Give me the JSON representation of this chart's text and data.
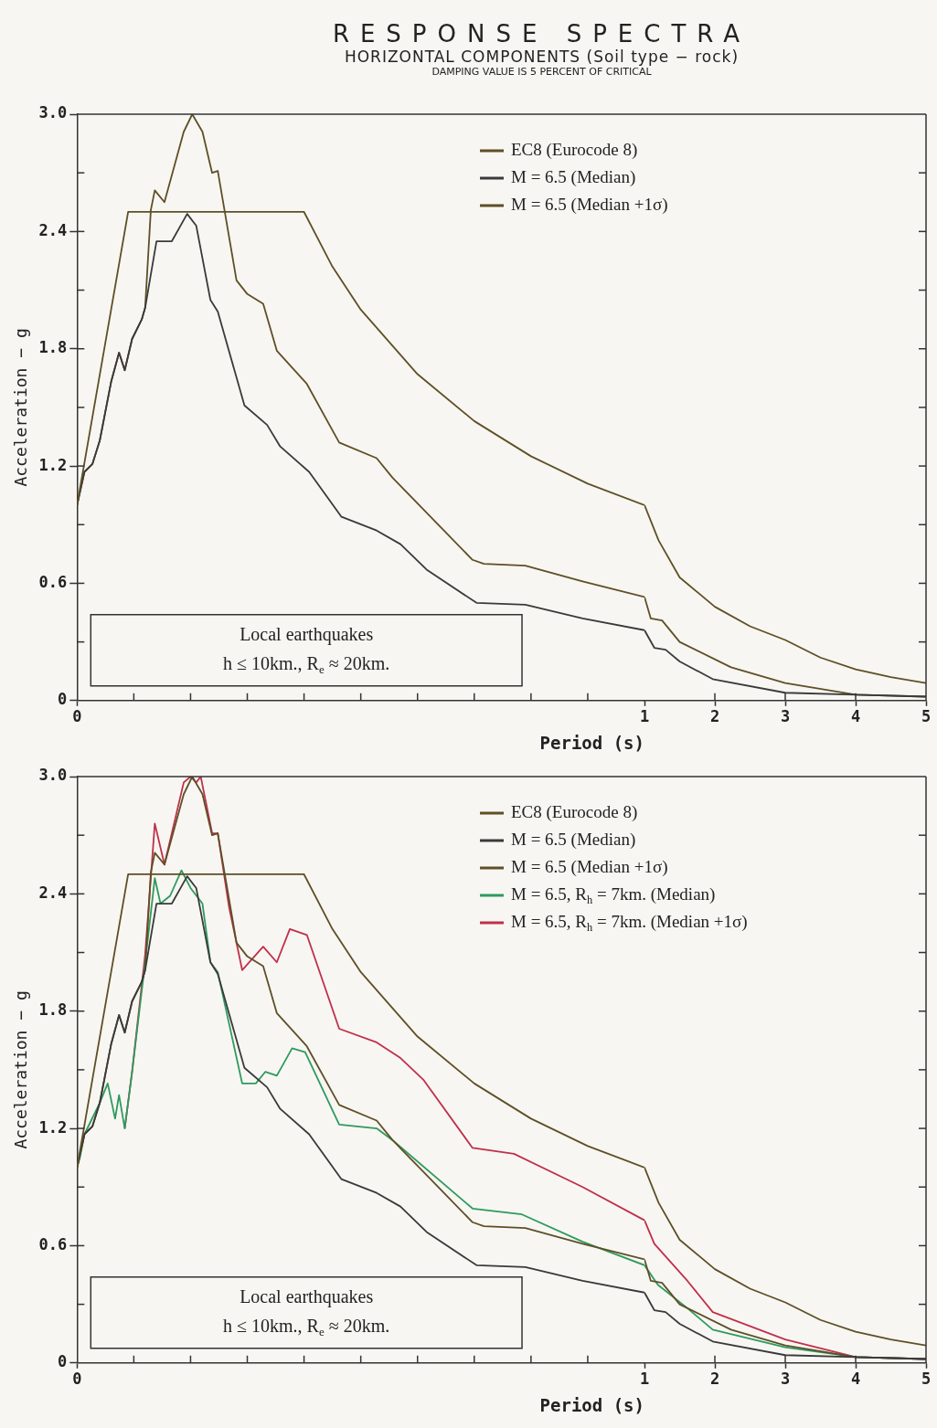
{
  "chart_data": [
    {
      "type": "line",
      "title": "RESPONSE SPECTRA",
      "subtitle": "HORIZONTAL COMPONENTS  (Soil type − rock)\nDAMPING VALUE IS 5 PERCENT OF CRITICAL",
      "xlabel": "Period (s)",
      "ylabel": "Acceleration − g",
      "xlim": [
        0,
        1
      ],
      "ylim": [
        0,
        3
      ],
      "xticks": [
        {
          "value": 0,
          "label": "0"
        },
        {
          "value": 0.1,
          "label": null
        },
        {
          "value": 0.2,
          "label": null
        },
        {
          "value": 0.3,
          "label": null
        },
        {
          "value": 0.4,
          "label": null
        },
        {
          "value": 0.5,
          "label": null
        },
        {
          "value": 0.6,
          "label": null
        },
        {
          "value": 0.7,
          "label": null
        },
        {
          "value": 0.8,
          "label": null
        },
        {
          "value": 0.9,
          "label": null
        },
        {
          "value": 1,
          "label": "1"
        }
      ],
      "yticks": [
        {
          "value": 0,
          "label": "0"
        },
        {
          "value": 0.3,
          "label": null
        },
        {
          "value": 0.6,
          "label": "0.6"
        },
        {
          "value": 0.9,
          "label": null
        },
        {
          "value": 1.2,
          "label": "1.2"
        },
        {
          "value": 1.5,
          "label": null
        },
        {
          "value": 1.8,
          "label": "1.8"
        },
        {
          "value": 2.1,
          "label": null
        },
        {
          "value": 2.4,
          "label": "2.4"
        },
        {
          "value": 2.7,
          "label": null
        },
        {
          "value": 3,
          "label": "3.0"
        }
      ],
      "grid": false,
      "legend": "top right",
      "annotations": [
        "Local earthquakes",
        "h ≤ 10km., R$_{e}$ ≈ 20km."
      ],
      "series": [
        {
          "name": "EC8 (Eurocode 8)",
          "color": "#5e4f26",
          "x": [
            0,
            0.09,
            0.4,
            0.45,
            0.5,
            0.6,
            0.7,
            0.8,
            0.9,
            1
          ],
          "values": [
            1.0,
            2.5,
            2.5,
            2.22,
            2.0,
            1.67,
            1.43,
            1.25,
            1.11,
            1.0
          ]
        },
        {
          "name": "M = 6.5 (Median)",
          "color": "#3a3a3a",
          "x": [
            0,
            0.013,
            0.027,
            0.04,
            0.06,
            0.074,
            0.084,
            0.097,
            0.114,
            0.12,
            0.14,
            0.167,
            0.194,
            0.21,
            0.235,
            0.248,
            0.295,
            0.335,
            0.358,
            0.409,
            0.466,
            0.528,
            0.57,
            0.616,
            0.704,
            0.79,
            0.891,
            1
          ],
          "values": [
            1.0,
            1.17,
            1.21,
            1.33,
            1.63,
            1.78,
            1.69,
            1.85,
            1.95,
            2.01,
            2.35,
            2.35,
            2.49,
            2.43,
            2.05,
            1.99,
            1.51,
            1.41,
            1.3,
            1.17,
            0.94,
            0.87,
            0.8,
            0.67,
            0.5,
            0.49,
            0.42,
            0.36
          ]
        },
        {
          "name": "M = 6.5 (Median +1σ)",
          "color": "#5e4f26",
          "x": [
            0,
            0.013,
            0.027,
            0.04,
            0.06,
            0.074,
            0.084,
            0.097,
            0.114,
            0.12,
            0.13,
            0.137,
            0.154,
            0.188,
            0.203,
            0.221,
            0.238,
            0.248,
            0.281,
            0.3,
            0.328,
            0.352,
            0.405,
            0.462,
            0.528,
            0.556,
            0.623,
            0.697,
            0.717,
            0.79,
            0.891,
            1
          ],
          "values": [
            1.0,
            1.17,
            1.21,
            1.33,
            1.63,
            1.78,
            1.69,
            1.85,
            1.95,
            2.01,
            2.51,
            2.61,
            2.55,
            2.91,
            3.0,
            2.91,
            2.7,
            2.71,
            2.15,
            2.08,
            2.03,
            1.79,
            1.62,
            1.32,
            1.24,
            1.14,
            0.94,
            0.72,
            0.7,
            0.69,
            0.61,
            0.53
          ]
        }
      ]
    },
    {
      "type": "line",
      "xlim": [
        1,
        5
      ],
      "ylim": [
        0,
        3
      ],
      "tick_labels": "x",
      "xticks": [
        {
          "value": 2,
          "label": "2"
        },
        {
          "value": 3,
          "label": "3"
        },
        {
          "value": 4,
          "label": "4"
        },
        {
          "value": 5,
          "label": "5"
        }
      ],
      "yticks": [
        {
          "value": 0,
          "label": null
        },
        {
          "value": 0.3,
          "label": null
        },
        {
          "value": 0.6,
          "label": null
        },
        {
          "value": 0.9,
          "label": null
        },
        {
          "value": 1.2,
          "label": null
        },
        {
          "value": 1.5,
          "label": null
        },
        {
          "value": 1.8,
          "label": null
        },
        {
          "value": 2.1,
          "label": null
        },
        {
          "value": 2.4,
          "label": null
        },
        {
          "value": 2.7,
          "label": null
        },
        {
          "value": 3,
          "label": null
        }
      ],
      "grid": false,
      "series": [
        {
          "color": "#5e4f26",
          "x": [
            1,
            1.2,
            1.5,
            2,
            2.5,
            3,
            3.5,
            4,
            4.5,
            5
          ],
          "values": [
            1.0,
            0.82,
            0.63,
            0.48,
            0.38,
            0.31,
            0.22,
            0.16,
            0.12,
            0.09
          ]
        },
        {
          "color": "#3a3a3a",
          "x": [
            1,
            1.14,
            1.3,
            1.5,
            1.97,
            3,
            4,
            5
          ],
          "values": [
            0.36,
            0.27,
            0.26,
            0.2,
            0.11,
            0.04,
            0.03,
            0.02
          ]
        },
        {
          "color": "#5e4f26",
          "x": [
            1,
            1.09,
            1.25,
            1.5,
            2.23,
            3,
            4,
            5
          ],
          "values": [
            0.53,
            0.42,
            0.41,
            0.3,
            0.17,
            0.09,
            0.03,
            0.02
          ]
        }
      ]
    },
    {
      "type": "line",
      "xlabel": "Period (s)",
      "ylabel": "Acceleration − g",
      "xlim": [
        0,
        1
      ],
      "ylim": [
        0,
        3
      ],
      "xticks": [
        {
          "value": 0,
          "label": "0"
        },
        {
          "value": 0.1,
          "label": null
        },
        {
          "value": 0.2,
          "label": null
        },
        {
          "value": 0.3,
          "label": null
        },
        {
          "value": 0.4,
          "label": null
        },
        {
          "value": 0.5,
          "label": null
        },
        {
          "value": 0.6,
          "label": null
        },
        {
          "value": 0.7,
          "label": null
        },
        {
          "value": 0.8,
          "label": null
        },
        {
          "value": 0.9,
          "label": null
        },
        {
          "value": 1,
          "label": "1"
        }
      ],
      "yticks": [
        {
          "value": 0,
          "label": "0"
        },
        {
          "value": 0.3,
          "label": null
        },
        {
          "value": 0.6,
          "label": "0.6"
        },
        {
          "value": 0.9,
          "label": null
        },
        {
          "value": 1.2,
          "label": "1.2"
        },
        {
          "value": 1.5,
          "label": null
        },
        {
          "value": 1.8,
          "label": "1.8"
        },
        {
          "value": 2.1,
          "label": null
        },
        {
          "value": 2.4,
          "label": "2.4"
        },
        {
          "value": 2.7,
          "label": null
        },
        {
          "value": 3,
          "label": "3.0"
        }
      ],
      "grid": false,
      "legend": "top right",
      "annotations": [
        "Local earthquakes",
        "h ≤ 10km., R$_{e}$ ≈ 20km."
      ],
      "series": [
        {
          "name": "EC8 (Eurocode 8)",
          "color": "#5e4f26",
          "x": [
            0,
            0.09,
            0.4,
            0.45,
            0.5,
            0.6,
            0.7,
            0.8,
            0.9,
            1
          ],
          "values": [
            1.0,
            2.5,
            2.5,
            2.22,
            2.0,
            1.67,
            1.43,
            1.25,
            1.11,
            1.0
          ]
        },
        {
          "name": "M = 6.5 (Median)",
          "color": "#3a3a3a",
          "x": [
            0,
            0.013,
            0.027,
            0.04,
            0.06,
            0.074,
            0.084,
            0.097,
            0.114,
            0.12,
            0.14,
            0.167,
            0.194,
            0.21,
            0.235,
            0.248,
            0.295,
            0.335,
            0.358,
            0.409,
            0.466,
            0.528,
            0.57,
            0.616,
            0.704,
            0.79,
            0.891,
            1
          ],
          "values": [
            1.0,
            1.17,
            1.21,
            1.33,
            1.63,
            1.78,
            1.69,
            1.85,
            1.95,
            2.01,
            2.35,
            2.35,
            2.49,
            2.43,
            2.05,
            1.99,
            1.51,
            1.41,
            1.3,
            1.17,
            0.94,
            0.87,
            0.8,
            0.67,
            0.5,
            0.49,
            0.42,
            0.36
          ]
        },
        {
          "name": "M = 6.5 (Median +1σ)",
          "color": "#5e4f26",
          "x": [
            0,
            0.013,
            0.027,
            0.04,
            0.06,
            0.074,
            0.084,
            0.097,
            0.114,
            0.12,
            0.13,
            0.137,
            0.154,
            0.188,
            0.203,
            0.221,
            0.238,
            0.248,
            0.281,
            0.3,
            0.328,
            0.352,
            0.405,
            0.462,
            0.528,
            0.556,
            0.623,
            0.697,
            0.717,
            0.79,
            0.891,
            1
          ],
          "values": [
            1.0,
            1.17,
            1.21,
            1.33,
            1.63,
            1.78,
            1.69,
            1.85,
            1.95,
            2.01,
            2.51,
            2.61,
            2.55,
            2.91,
            3.0,
            2.91,
            2.7,
            2.71,
            2.15,
            2.08,
            2.03,
            1.79,
            1.62,
            1.32,
            1.24,
            1.14,
            0.94,
            0.72,
            0.7,
            0.69,
            0.61,
            0.53
          ]
        },
        {
          "name": "M = 6.5, R$_{h}$ = 7km. (Median)",
          "color": "#2e9a5e",
          "x": [
            0,
            0.005,
            0.013,
            0.04,
            0.054,
            0.067,
            0.074,
            0.084,
            0.097,
            0.12,
            0.137,
            0.147,
            0.164,
            0.184,
            0.2,
            0.221,
            0.235,
            0.248,
            0.291,
            0.315,
            0.332,
            0.352,
            0.379,
            0.402,
            0.462,
            0.528,
            0.556,
            0.697,
            0.784,
            0.891,
            1
          ],
          "values": [
            1.0,
            1.05,
            1.17,
            1.33,
            1.43,
            1.25,
            1.37,
            1.2,
            1.49,
            2.05,
            2.48,
            2.35,
            2.39,
            2.52,
            2.43,
            2.35,
            2.05,
            2.0,
            1.43,
            1.43,
            1.49,
            1.47,
            1.61,
            1.59,
            1.22,
            1.2,
            1.14,
            0.79,
            0.76,
            0.62,
            0.5
          ]
        },
        {
          "name": "M = 6.5, R$_{h}$ = 7km. (Median +1σ)",
          "color": "#c0304a",
          "x": [
            0.084,
            0.097,
            0.12,
            0.137,
            0.154,
            0.188,
            0.2,
            0.21,
            0.218,
            0.238,
            0.248,
            0.268,
            0.291,
            0.328,
            0.352,
            0.375,
            0.405,
            0.462,
            0.528,
            0.57,
            0.61,
            0.697,
            0.77,
            0.891,
            1
          ],
          "values": [
            1.2,
            1.49,
            2.09,
            2.76,
            2.55,
            2.97,
            3.0,
            2.97,
            3.0,
            2.71,
            2.71,
            2.33,
            2.01,
            2.13,
            2.05,
            2.22,
            2.19,
            1.71,
            1.64,
            1.56,
            1.45,
            1.1,
            1.07,
            0.9,
            0.73
          ]
        }
      ]
    },
    {
      "type": "line",
      "xlim": [
        1,
        5
      ],
      "ylim": [
        0,
        3
      ],
      "tick_labels": "x",
      "xticks": [
        {
          "value": 2,
          "label": "2"
        },
        {
          "value": 3,
          "label": "3"
        },
        {
          "value": 4,
          "label": "4"
        },
        {
          "value": 5,
          "label": "5"
        }
      ],
      "yticks": [
        {
          "value": 0,
          "label": null
        },
        {
          "value": 0.3,
          "label": null
        },
        {
          "value": 0.6,
          "label": null
        },
        {
          "value": 0.9,
          "label": null
        },
        {
          "value": 1.2,
          "label": null
        },
        {
          "value": 1.5,
          "label": null
        },
        {
          "value": 1.8,
          "label": null
        },
        {
          "value": 2.1,
          "label": null
        },
        {
          "value": 2.4,
          "label": null
        },
        {
          "value": 2.7,
          "label": null
        },
        {
          "value": 3,
          "label": null
        }
      ],
      "grid": false,
      "series": [
        {
          "color": "#5e4f26",
          "x": [
            1,
            1.2,
            1.5,
            2,
            2.5,
            3,
            3.5,
            4,
            4.5,
            5
          ],
          "values": [
            1.0,
            0.82,
            0.63,
            0.48,
            0.38,
            0.31,
            0.22,
            0.16,
            0.12,
            0.09
          ]
        },
        {
          "color": "#3a3a3a",
          "x": [
            1,
            1.14,
            1.3,
            1.5,
            1.97,
            3,
            4,
            5
          ],
          "values": [
            0.36,
            0.27,
            0.26,
            0.2,
            0.11,
            0.04,
            0.03,
            0.02
          ]
        },
        {
          "color": "#5e4f26",
          "x": [
            1,
            1.09,
            1.25,
            1.5,
            2.23,
            3,
            4,
            5
          ],
          "values": [
            0.53,
            0.42,
            0.41,
            0.3,
            0.17,
            0.09,
            0.03,
            0.02
          ]
        },
        {
          "color": "#2e9a5e",
          "x": [
            1,
            1.19,
            1.61,
            1.97,
            3,
            4,
            5
          ],
          "values": [
            0.5,
            0.4,
            0.28,
            0.17,
            0.08,
            0.03,
            0.02
          ]
        },
        {
          "color": "#c0304a",
          "x": [
            1,
            1.14,
            1.61,
            1.97,
            3,
            4,
            5
          ],
          "values": [
            0.73,
            0.61,
            0.42,
            0.26,
            0.12,
            0.03,
            0.02
          ]
        }
      ]
    }
  ]
}
